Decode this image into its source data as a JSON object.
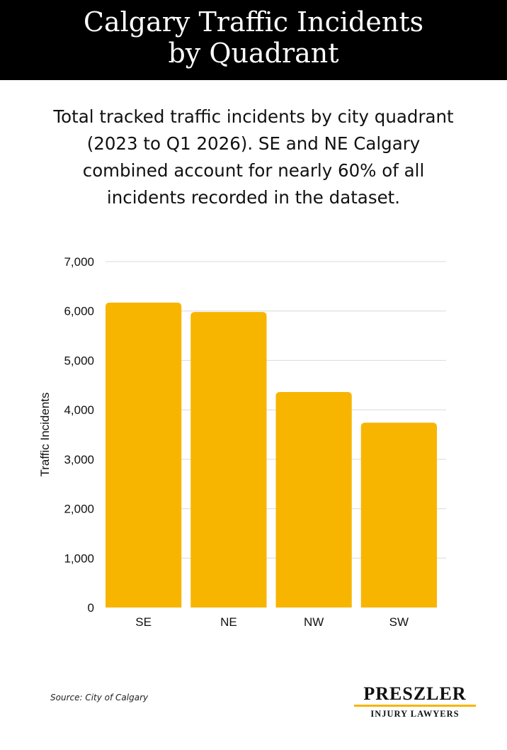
{
  "header": {
    "title_line1": "Calgary Traffic Incidents",
    "title_line2": "by Quadrant"
  },
  "subtitle": "Total tracked traffic incidents by city quadrant (2023 to Q1 2026). SE and NE Calgary combined account for nearly 60% of all incidents recorded in the dataset.",
  "chart_data": {
    "type": "bar",
    "title": "",
    "xlabel": "",
    "ylabel": "Traffic Incidents",
    "categories": [
      "SE",
      "NE",
      "NW",
      "SW"
    ],
    "values": [
      6170,
      5980,
      4360,
      3740
    ],
    "ylim": [
      0,
      7000
    ],
    "yticks": [
      0,
      1000,
      2000,
      3000,
      4000,
      5000,
      6000,
      7000
    ],
    "ytick_labels": [
      "0",
      "1,000",
      "2,000",
      "3,000",
      "4,000",
      "5,000",
      "6,000",
      "7,000"
    ],
    "grid": true,
    "bar_color": "#f7b500",
    "grid_color": "#d9d9d9"
  },
  "source": "Source: City of Calgary",
  "logo": {
    "name": "PRESZLER",
    "tagline": "INJURY LAWYERS",
    "accent_color": "#f7b500"
  }
}
